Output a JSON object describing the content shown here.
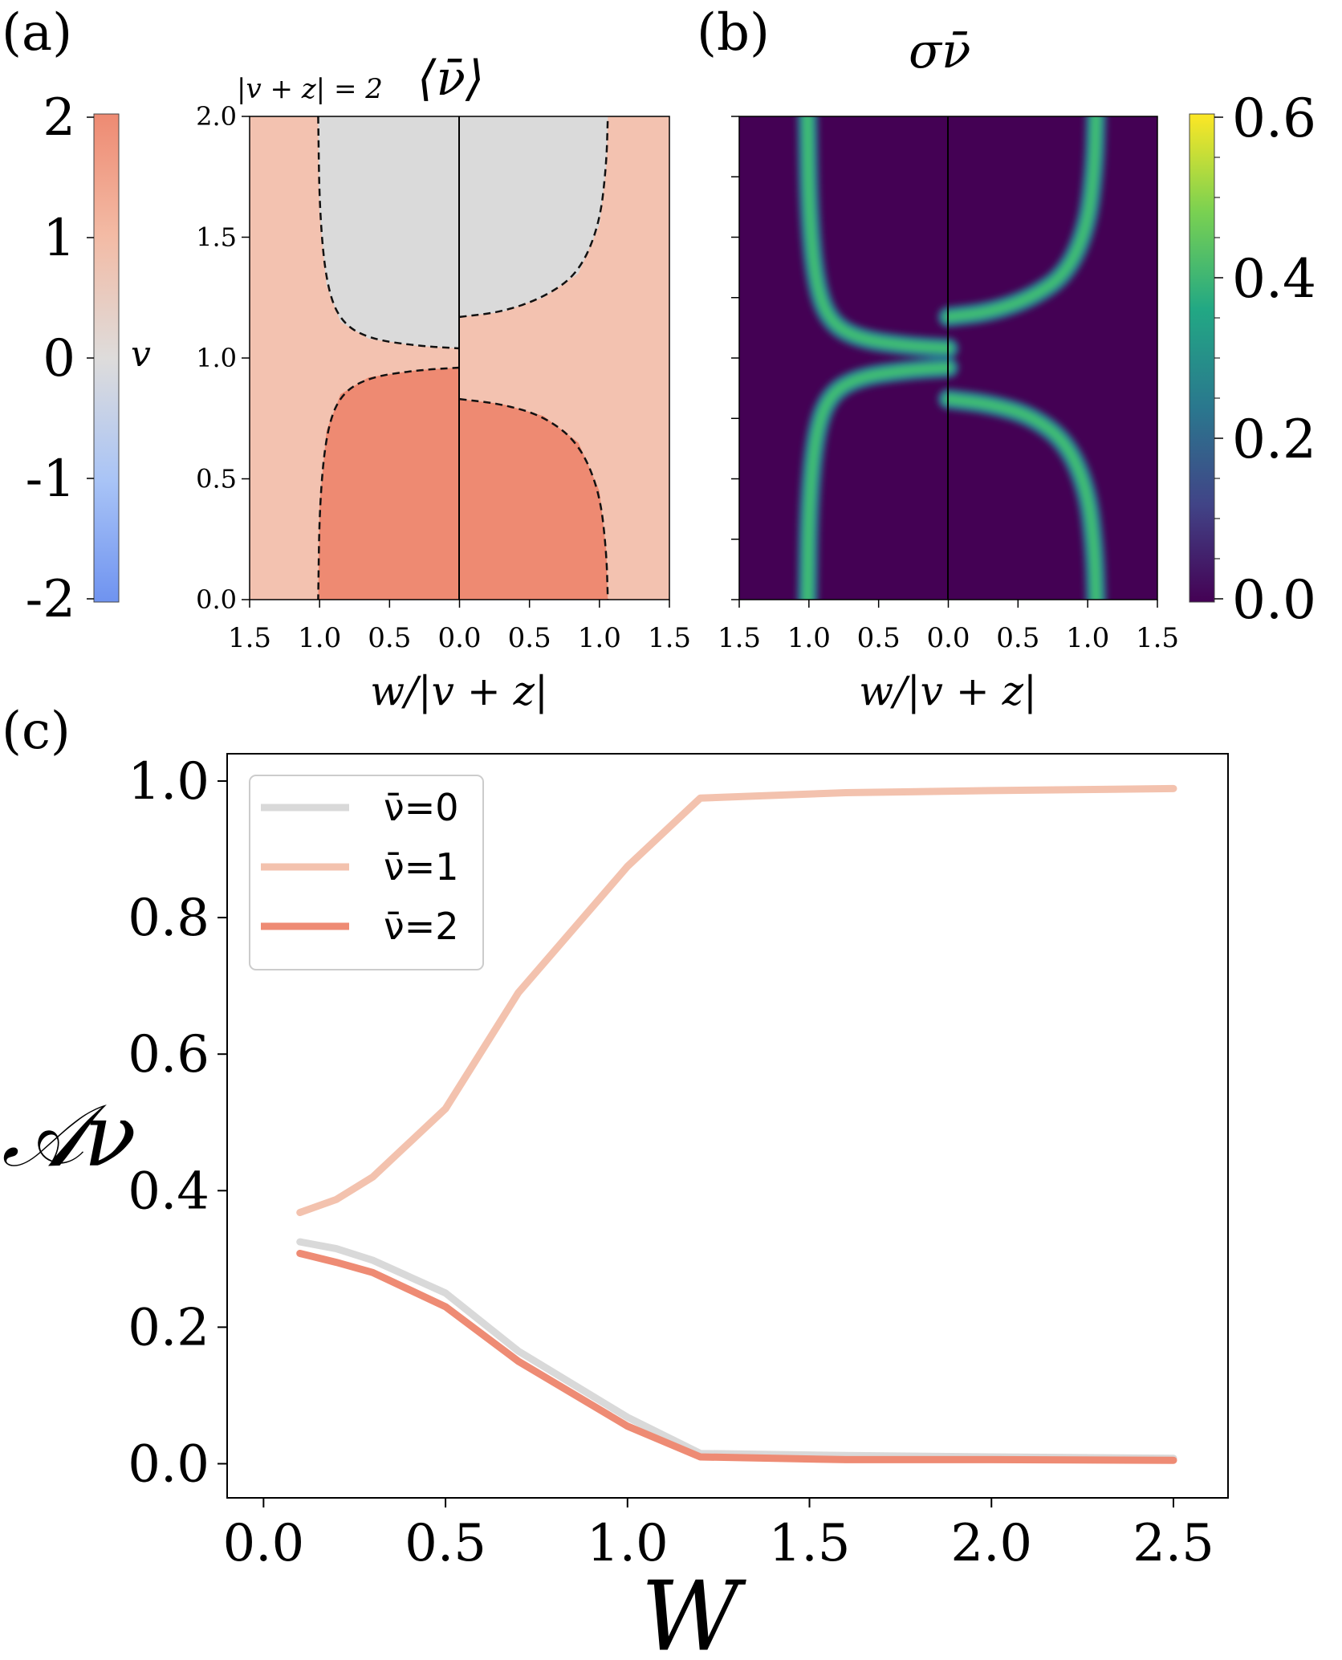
{
  "panel_a": {
    "label": "(a)",
    "title": "⟨ν̄⟩",
    "annotation": "|v + z| = 2",
    "xlabel": "w/|v + z|",
    "colorbar_label": "v",
    "x_ticks": [
      "1.5",
      "1.0",
      "0.5",
      "0.0",
      "0.5",
      "1.0",
      "1.5"
    ],
    "y_ticks": [
      "0.0",
      "0.5",
      "1.0",
      "1.5",
      "2.0"
    ],
    "colorbar_ticks": [
      "-2",
      "-1",
      "0",
      "1",
      "2"
    ],
    "colors": {
      "nu0": "#dadada",
      "nu1": "#f3c2b0",
      "nu2": "#ee8a72"
    }
  },
  "panel_b": {
    "label": "(b)",
    "title": "σν̄",
    "xlabel": "w/|v + z|",
    "x_ticks": [
      "1.5",
      "1.0",
      "0.5",
      "0.0",
      "0.5",
      "1.0",
      "1.5"
    ],
    "colorbar_ticks": [
      "0.0",
      "0.2",
      "0.4",
      "0.6"
    ],
    "colors": {
      "background": "#440154",
      "ridge": "#3fc072"
    }
  },
  "panel_c": {
    "label": "(c)",
    "ylabel": "𝒜ν",
    "xlabel": "W",
    "x_ticks": [
      "0.0",
      "0.5",
      "1.0",
      "1.5",
      "2.0",
      "2.5"
    ],
    "y_ticks": [
      "0.0",
      "0.2",
      "0.4",
      "0.6",
      "0.8",
      "1.0"
    ]
  },
  "chart_data": [
    {
      "type": "heatmap",
      "panel": "a",
      "title": "⟨ν̄⟩",
      "xlabel": "w/|v + z|",
      "xlim": [
        -1.5,
        1.5
      ],
      "ylim": [
        0.0,
        2.0
      ],
      "colorbar": {
        "label": "v",
        "range": [
          -2,
          2
        ],
        "colormap": "coolwarm"
      },
      "regions": [
        {
          "value": 0,
          "description": "upper-center"
        },
        {
          "value": 1,
          "description": "outer"
        },
        {
          "value": 2,
          "description": "lower-center"
        }
      ],
      "boundaries": {
        "left_upper": [
          [
            1.01,
            2.0
          ],
          [
            1.0,
            1.6
          ],
          [
            0.95,
            1.3
          ],
          [
            0.85,
            1.15
          ],
          [
            0.65,
            1.08
          ],
          [
            0.3,
            1.05
          ],
          [
            0.0,
            1.04
          ]
        ],
        "left_lower": [
          [
            0.0,
            0.96
          ],
          [
            0.3,
            0.95
          ],
          [
            0.65,
            0.92
          ],
          [
            0.85,
            0.85
          ],
          [
            0.95,
            0.7
          ],
          [
            1.0,
            0.4
          ],
          [
            1.01,
            0.0
          ]
        ],
        "right_upper": [
          [
            0.0,
            1.17
          ],
          [
            0.3,
            1.19
          ],
          [
            0.6,
            1.25
          ],
          [
            0.85,
            1.35
          ],
          [
            1.0,
            1.55
          ],
          [
            1.05,
            1.8
          ],
          [
            1.06,
            2.0
          ]
        ],
        "right_lower": [
          [
            0.0,
            0.83
          ],
          [
            0.3,
            0.81
          ],
          [
            0.6,
            0.76
          ],
          [
            0.85,
            0.65
          ],
          [
            1.0,
            0.45
          ],
          [
            1.05,
            0.2
          ],
          [
            1.06,
            0.0
          ]
        ]
      }
    },
    {
      "type": "heatmap",
      "panel": "b",
      "title": "σν̄",
      "xlabel": "w/|v + z|",
      "xlim": [
        -1.5,
        1.5
      ],
      "ylim": [
        0.0,
        2.0
      ],
      "colorbar": {
        "range": [
          0.0,
          0.6
        ],
        "colormap": "viridis"
      },
      "ridge_value": 0.45
    },
    {
      "type": "line",
      "panel": "c",
      "xlabel": "W",
      "ylabel": "𝒜ν",
      "xlim": [
        -0.1,
        2.65
      ],
      "ylim": [
        -0.05,
        1.04
      ],
      "legend": "top-left",
      "x": [
        0.1,
        0.2,
        0.3,
        0.5,
        0.7,
        1.0,
        1.2,
        1.6,
        2.0,
        2.5
      ],
      "series": [
        {
          "name": "ν̄=0",
          "color": "#d9d9d9",
          "values": [
            0.325,
            0.315,
            0.298,
            0.25,
            0.165,
            0.068,
            0.015,
            0.012,
            0.01,
            0.008
          ]
        },
        {
          "name": "ν̄=1",
          "color": "#f3c2ae",
          "values": [
            0.368,
            0.387,
            0.42,
            0.52,
            0.69,
            0.875,
            0.975,
            0.983,
            0.986,
            0.989
          ]
        },
        {
          "name": "ν̄=2",
          "color": "#ee8b74",
          "values": [
            0.308,
            0.295,
            0.28,
            0.23,
            0.15,
            0.055,
            0.01,
            0.006,
            0.006,
            0.005
          ]
        }
      ]
    }
  ]
}
